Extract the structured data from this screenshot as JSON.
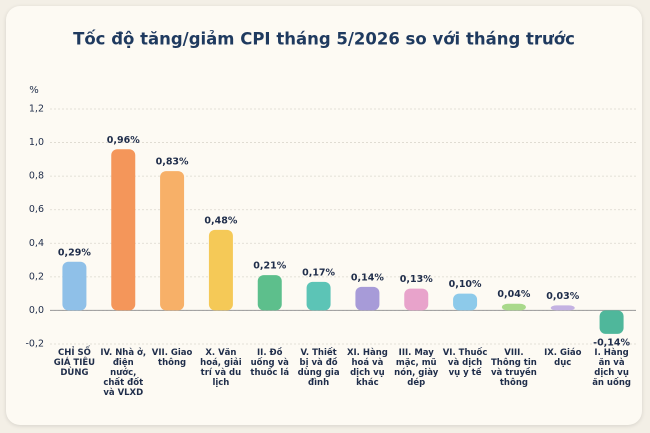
{
  "chart_data": {
    "type": "bar",
    "title": "Tốc độ tăng/giảm CPI tháng 5/2026 so với tháng trước",
    "y_label": "%",
    "categories": [
      "CHỈ SỐ GIÁ TIÊU DÙNG",
      "IV. Nhà ở, điện nước, chất đốt và VLXD",
      "VII. Giao thông",
      "X. Văn hoá, giải trí và du lịch",
      "II. Đồ uống và thuốc lá",
      "V. Thiết bị và đồ dùng gia đình",
      "XI. Hàng hoá và dịch vụ khác",
      "III. May mặc, mũ nón, giày dép",
      "VI. Thuốc và dịch vụ y tế",
      "VIII. Thông tin và truyền thông",
      "IX. Giáo dục",
      "I. Hàng ăn và dịch vụ ăn uống"
    ],
    "values": [
      0.29,
      0.96,
      0.83,
      0.48,
      0.21,
      0.17,
      0.14,
      0.13,
      0.1,
      0.04,
      0.03,
      -0.14
    ],
    "value_labels": [
      "0,29%",
      "0,96%",
      "0,83%",
      "0,48%",
      "0,21%",
      "0,17%",
      "0,14%",
      "0,13%",
      "0,10%",
      "0,04%",
      "0,03%",
      "-0,14%"
    ],
    "colors": [
      "#8fc0e8",
      "#f4965a",
      "#f7b068",
      "#f5c957",
      "#5dbf8c",
      "#5cc4b6",
      "#a79bd8",
      "#e8a3cb",
      "#8dcaea",
      "#a9d98b",
      "#c4b2e2",
      "#4fb79b"
    ],
    "ylim": [
      -0.2,
      1.2
    ],
    "yticks": [
      {
        "value": -0.2,
        "label": "-0,2"
      },
      {
        "value": 0,
        "label": "0,0"
      },
      {
        "value": 0.2,
        "label": "0,2"
      },
      {
        "value": 0.4,
        "label": "0,4"
      },
      {
        "value": 0.6,
        "label": "0,6"
      },
      {
        "value": 0.8,
        "label": "0,8"
      },
      {
        "value": 1.0,
        "label": "1,0"
      },
      {
        "value": 1.2,
        "label": "1,2"
      }
    ],
    "grid": true
  }
}
